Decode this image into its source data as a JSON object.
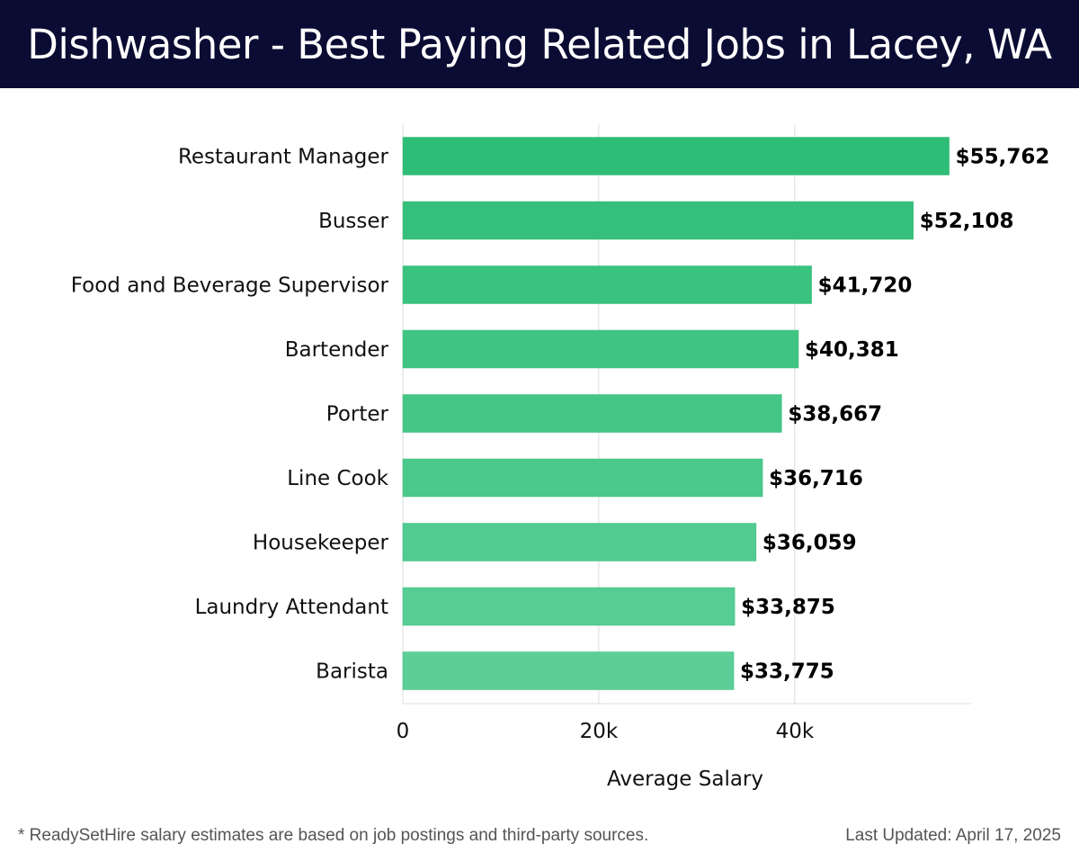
{
  "title": "Dishwasher - Best Paying Related Jobs in Lacey, WA",
  "footer": {
    "note": "* ReadySetHire salary estimates are based on job postings and third-party sources.",
    "updated": "Last Updated: April 17, 2025"
  },
  "colors": {
    "title_bg": "#0b0c33",
    "bar_top": "#2ebd76",
    "bar_bottom": "#5ccf98",
    "grid": "#dcdcdc"
  },
  "chart_data": {
    "type": "bar",
    "orientation": "horizontal",
    "categories": [
      "Restaurant Manager",
      "Busser",
      "Food and Beverage Supervisor",
      "Bartender",
      "Porter",
      "Line Cook",
      "Housekeeper",
      "Laundry Attendant",
      "Barista"
    ],
    "values": [
      55762,
      52108,
      41720,
      40381,
      38667,
      36716,
      36059,
      33875,
      33775
    ],
    "value_labels": [
      "$55,762",
      "$52,108",
      "$41,720",
      "$40,381",
      "$38,667",
      "$36,716",
      "$36,059",
      "$33,875",
      "$33,775"
    ],
    "xlabel": "Average Salary",
    "ylabel": "",
    "xlim": [
      0,
      58000
    ],
    "xticks": [
      0,
      20000,
      40000
    ],
    "xtick_labels": [
      "0",
      "20k",
      "40k"
    ],
    "grid": true
  }
}
